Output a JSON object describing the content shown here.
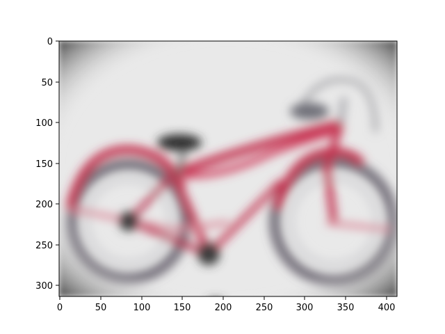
{
  "figure": {
    "background": "#ffffff",
    "axes_color": "#000000"
  },
  "image_panel": {
    "x_range": [
      0,
      413
    ],
    "y_range": [
      0,
      315
    ],
    "y_axis_inverted": true,
    "x_ticks": [
      "0",
      "50",
      "100",
      "150",
      "200",
      "250",
      "300",
      "350",
      "400"
    ],
    "y_ticks": [
      "0",
      "50",
      "100",
      "150",
      "200",
      "250",
      "300"
    ],
    "content": {
      "subject": "bicycle",
      "style": "heavily blurred",
      "frame_color": "#c22a4a",
      "tire_color": "#5a5560",
      "saddle_color": "#2f2f2f",
      "background_color": "#e9e9e9",
      "vignette_color": "#3a3a3a"
    }
  }
}
